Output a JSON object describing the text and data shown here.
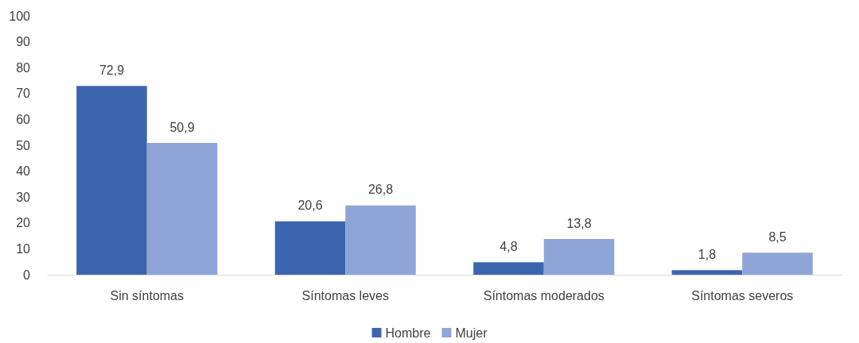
{
  "chart_data": {
    "type": "bar",
    "categories": [
      "Sin síntomas",
      "Síntomas leves",
      "Síntomas moderados",
      "Síntomas severos"
    ],
    "series": [
      {
        "name": "Hombre",
        "color": "#3d65ae",
        "values": [
          72.9,
          20.6,
          4.8,
          1.8
        ],
        "value_labels": [
          "72,9",
          "20,6",
          "4,8",
          "1,8"
        ]
      },
      {
        "name": "Mujer",
        "color": "#8fa5d7",
        "values": [
          50.9,
          26.8,
          13.8,
          8.5
        ],
        "value_labels": [
          "50,9",
          "26,8",
          "13,8",
          "8,5"
        ]
      }
    ],
    "ylim": [
      0,
      100
    ],
    "yticks": [
      0,
      10,
      20,
      30,
      40,
      50,
      60,
      70,
      80,
      90,
      100
    ],
    "grid": false,
    "legend": "bottom"
  }
}
